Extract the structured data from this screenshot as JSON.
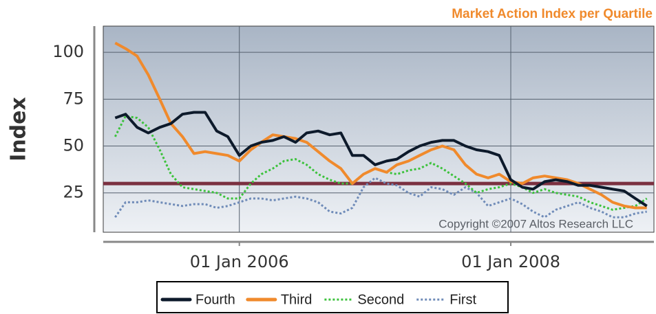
{
  "chart_data": {
    "type": "line",
    "title": "Market Action Index per Quartile",
    "y_label": "Index",
    "annotation": "Copyright ©2007 Altos Research LLC",
    "x": [
      "2005-02-01",
      "2005-03-01",
      "2005-04-01",
      "2005-05-01",
      "2005-06-01",
      "2005-07-01",
      "2005-08-01",
      "2005-09-01",
      "2005-10-01",
      "2005-11-01",
      "2005-12-01",
      "2006-01-01",
      "2006-02-01",
      "2006-03-01",
      "2006-04-01",
      "2006-05-01",
      "2006-06-01",
      "2006-07-01",
      "2006-08-01",
      "2006-09-01",
      "2006-10-01",
      "2006-11-01",
      "2006-12-01",
      "2007-01-01",
      "2007-02-01",
      "2007-03-01",
      "2007-04-01",
      "2007-05-01",
      "2007-06-01",
      "2007-07-01",
      "2007-08-01",
      "2007-09-01",
      "2007-10-01",
      "2007-11-01",
      "2007-12-01",
      "2008-01-01",
      "2008-02-01",
      "2008-03-01",
      "2008-04-01",
      "2008-05-01",
      "2008-06-01",
      "2008-07-01",
      "2008-08-01",
      "2008-09-01",
      "2008-10-01",
      "2008-11-01",
      "2008-12-01",
      "2009-01-01"
    ],
    "series": [
      {
        "name": "Fourth",
        "color": "#0d1a2b",
        "style": "solid",
        "values": [
          65,
          67,
          60,
          57,
          60,
          62,
          67,
          68,
          68,
          58,
          55,
          45,
          50,
          52,
          53,
          55,
          52,
          57,
          58,
          56,
          57,
          45,
          45,
          40,
          42,
          43,
          47,
          50,
          52,
          53,
          53,
          50,
          48,
          47,
          45,
          32,
          28,
          27,
          31,
          32,
          31,
          29,
          29,
          28,
          27,
          26,
          22,
          18
        ]
      },
      {
        "name": "Third",
        "color": "#f08a2c",
        "style": "solid",
        "values": [
          105,
          102,
          98,
          88,
          75,
          62,
          55,
          46,
          47,
          46,
          45,
          42,
          48,
          52,
          56,
          55,
          54,
          52,
          47,
          42,
          38,
          30,
          35,
          38,
          36,
          40,
          42,
          45,
          48,
          50,
          48,
          40,
          35,
          33,
          35,
          31,
          30,
          33,
          34,
          33,
          32,
          30,
          27,
          24,
          20,
          18,
          17,
          17
        ]
      },
      {
        "name": "Second",
        "color": "#3cc23c",
        "style": "dotted",
        "values": [
          55,
          66,
          65,
          60,
          48,
          35,
          28,
          27,
          26,
          25,
          22,
          22,
          30,
          35,
          38,
          42,
          43,
          40,
          35,
          32,
          30,
          30,
          35,
          38,
          36,
          35,
          37,
          38,
          41,
          38,
          34,
          30,
          25,
          27,
          28,
          30,
          28,
          25,
          27,
          25,
          24,
          23,
          20,
          18,
          16,
          17,
          18,
          22
        ]
      },
      {
        "name": "First",
        "color": "#6f8bb8",
        "style": "dotted",
        "values": [
          12,
          20,
          20,
          21,
          20,
          19,
          18,
          19,
          19,
          17,
          18,
          20,
          22,
          22,
          21,
          22,
          23,
          22,
          20,
          15,
          14,
          17,
          28,
          33,
          30,
          29,
          25,
          23,
          28,
          27,
          24,
          28,
          25,
          18,
          20,
          22,
          19,
          15,
          12,
          16,
          18,
          20,
          17,
          15,
          12,
          12,
          14,
          15
        ]
      }
    ],
    "reference_lines": [
      {
        "value": 30,
        "color": "#7b3040"
      }
    ],
    "xlim": [
      "2004-12-31",
      "2009-01-20"
    ],
    "xticks": [
      {
        "value": "2006-01-01",
        "label": "01 Jan 2006"
      },
      {
        "value": "2008-01-01",
        "label": "01 Jan 2008"
      }
    ],
    "ylim": [
      4,
      114
    ],
    "yticks": [
      25,
      50,
      75,
      100
    ],
    "grid": true
  }
}
